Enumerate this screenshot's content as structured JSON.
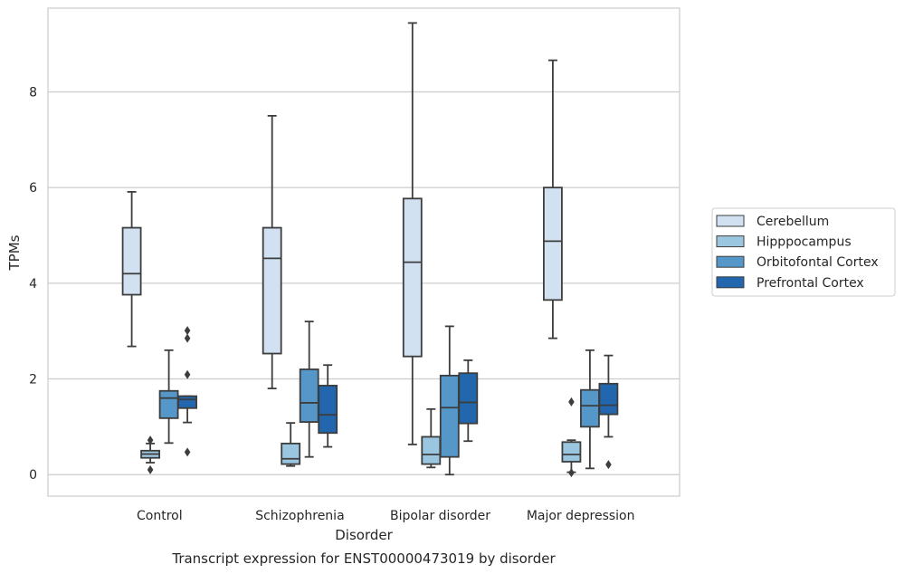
{
  "chart_data": {
    "type": "box",
    "title": "Transcript expression for ENST00000473019 by disorder",
    "xlabel": "Disorder",
    "ylabel": "TPMs",
    "ylim": [
      -0.45,
      9.75
    ],
    "yticks": [
      0,
      2,
      4,
      6,
      8
    ],
    "grid": "horizontal",
    "legend_position": "right",
    "categories": [
      "Control",
      "Schizophrenia",
      "Bipolar disorder",
      "Major depression"
    ],
    "series": [
      {
        "name": "Cerebellum",
        "color": "#d1e1f1",
        "boxes": [
          {
            "whisker_low": 2.68,
            "q1": 3.76,
            "median": 4.2,
            "q3": 5.16,
            "whisker_high": 5.91,
            "outliers": []
          },
          {
            "whisker_low": 1.8,
            "q1": 2.53,
            "median": 4.52,
            "q3": 5.16,
            "whisker_high": 7.5,
            "outliers": []
          },
          {
            "whisker_low": 0.63,
            "q1": 2.47,
            "median": 4.44,
            "q3": 5.77,
            "whisker_high": 9.44,
            "outliers": []
          },
          {
            "whisker_low": 2.85,
            "q1": 3.65,
            "median": 4.88,
            "q3": 6.0,
            "whisker_high": 8.66,
            "outliers": []
          }
        ]
      },
      {
        "name": "Hipppocampus",
        "color": "#9bc6e0",
        "boxes": [
          {
            "whisker_low": 0.25,
            "q1": 0.35,
            "median": 0.43,
            "q3": 0.5,
            "whisker_high": 0.65,
            "outliers": [
              0.72,
              0.1
            ]
          },
          {
            "whisker_low": 0.18,
            "q1": 0.22,
            "median": 0.33,
            "q3": 0.65,
            "whisker_high": 1.08,
            "outliers": []
          },
          {
            "whisker_low": 0.15,
            "q1": 0.22,
            "median": 0.42,
            "q3": 0.79,
            "whisker_high": 1.37,
            "outliers": []
          },
          {
            "whisker_low": 0.05,
            "q1": 0.27,
            "median": 0.42,
            "q3": 0.68,
            "whisker_high": 0.72,
            "outliers": [
              1.52,
              0.04
            ]
          }
        ]
      },
      {
        "name": "Orbitofontal Cortex",
        "color": "#5497c8",
        "boxes": [
          {
            "whisker_low": 0.66,
            "q1": 1.18,
            "median": 1.6,
            "q3": 1.75,
            "whisker_high": 2.6,
            "outliers": []
          },
          {
            "whisker_low": 0.37,
            "q1": 1.1,
            "median": 1.5,
            "q3": 2.2,
            "whisker_high": 3.2,
            "outliers": []
          },
          {
            "whisker_low": 0.0,
            "q1": 0.37,
            "median": 1.4,
            "q3": 2.07,
            "whisker_high": 3.1,
            "outliers": []
          },
          {
            "whisker_low": 0.13,
            "q1": 1.0,
            "median": 1.44,
            "q3": 1.77,
            "whisker_high": 2.6,
            "outliers": []
          }
        ]
      },
      {
        "name": "Prefrontal Cortex",
        "color": "#2267ad",
        "boxes": [
          {
            "whisker_low": 1.09,
            "q1": 1.39,
            "median": 1.57,
            "q3": 1.64,
            "whisker_high": 1.64,
            "outliers": [
              3.01,
              2.85,
              2.09,
              0.47
            ]
          },
          {
            "whisker_low": 0.58,
            "q1": 0.87,
            "median": 1.25,
            "q3": 1.86,
            "whisker_high": 2.29,
            "outliers": []
          },
          {
            "whisker_low": 0.7,
            "q1": 1.07,
            "median": 1.51,
            "q3": 2.12,
            "whisker_high": 2.39,
            "outliers": []
          },
          {
            "whisker_low": 0.79,
            "q1": 1.26,
            "median": 1.45,
            "q3": 1.9,
            "whisker_high": 2.49,
            "outliers": [
              0.21
            ]
          }
        ]
      }
    ]
  }
}
